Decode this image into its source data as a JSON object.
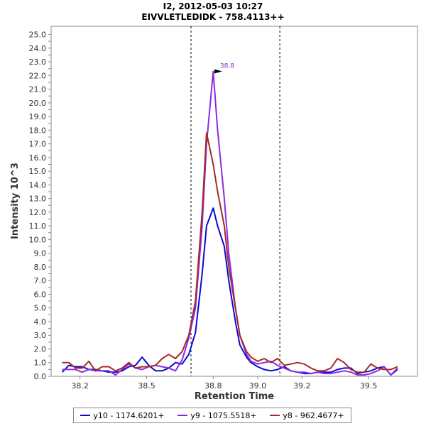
{
  "chart_data": {
    "type": "line",
    "title": "I2, 2012-05-03 10:27",
    "subtitle": "EIVVLETLEDIDK - 758.4113++",
    "xlabel": "Retention Time",
    "ylabel": "Intensity 10^3",
    "xlim": [
      38.07,
      39.72
    ],
    "ylim": [
      0,
      25.6
    ],
    "x_ticks": [
      38.2,
      38.5,
      38.8,
      39.0,
      39.2,
      39.5
    ],
    "x_tick_labels": [
      "38.2",
      "38.5",
      "38.8",
      "39.0",
      "39.2",
      "39.5"
    ],
    "y_ticks": [
      0.0,
      0.5,
      1.0,
      1.5,
      2.0,
      2.5,
      3.0,
      3.5,
      4.0,
      4.5,
      5.0,
      5.5,
      6.0,
      6.5,
      7.0,
      7.5,
      8.0,
      8.5,
      9.0,
      9.5,
      10.0,
      10.5,
      11.0,
      11.5,
      12.0,
      12.5,
      13.0,
      13.5,
      14.0,
      14.5,
      15.0,
      15.5,
      16.0,
      16.5,
      17.0,
      17.5,
      18.0,
      18.5,
      19.0,
      19.5,
      20.0,
      20.5,
      21.0,
      21.5,
      22.0,
      22.5,
      23.0,
      23.5,
      24.0,
      24.5,
      25.0
    ],
    "y_tick_labels": [
      "0.0",
      "0.5",
      "1.0",
      "1.5",
      "2.0",
      "2.5",
      "3.0",
      "3.5",
      "4.0",
      "4.5",
      "5.0",
      "5.5",
      "6.0",
      "6.5",
      "7.0",
      "7.5",
      "8.0",
      "8.5",
      "9.0",
      "9.5",
      "10.0",
      "10.5",
      "11.0",
      "11.5",
      "12.0",
      "12.5",
      "13.0",
      "13.5",
      "14.0",
      "14.5",
      "15.0",
      "15.5",
      "16.0",
      "16.5",
      "17.0",
      "17.5",
      "18.0",
      "18.5",
      "19.0",
      "19.5",
      "20.0",
      "20.5",
      "21.0",
      "21.5",
      "22.0",
      "22.5",
      "23.0",
      "23.5",
      "24.0",
      "24.5",
      "25.0"
    ],
    "vlines": [
      38.7,
      39.1
    ],
    "annotation": {
      "text": "38.8",
      "x": 38.85,
      "y": 22.3,
      "color": "#7a28c8"
    },
    "legend_position": "bottom",
    "series": [
      {
        "name": "y10 - 1174.6201+",
        "color": "#0a0ad4",
        "x": [
          38.12,
          38.15,
          38.18,
          38.21,
          38.24,
          38.27,
          38.3,
          38.33,
          38.36,
          38.39,
          38.42,
          38.45,
          38.48,
          38.51,
          38.54,
          38.57,
          38.6,
          38.63,
          38.66,
          38.69,
          38.72,
          38.75,
          38.77,
          38.8,
          38.82,
          38.85,
          38.87,
          38.9,
          38.92,
          38.95,
          38.97,
          39.0,
          39.03,
          39.06,
          39.09,
          39.12,
          39.15,
          39.18,
          39.21,
          39.24,
          39.27,
          39.3,
          39.33,
          39.36,
          39.39,
          39.42,
          39.45,
          39.48,
          39.51,
          39.54,
          39.57,
          39.6,
          39.63
        ],
        "y": [
          0.3,
          0.8,
          0.7,
          0.7,
          0.5,
          0.5,
          0.4,
          0.3,
          0.3,
          0.4,
          0.7,
          0.8,
          1.4,
          0.8,
          0.4,
          0.4,
          0.6,
          1.0,
          0.9,
          1.6,
          3.2,
          7.5,
          11.0,
          12.3,
          11.0,
          9.5,
          7.0,
          4.0,
          2.3,
          1.4,
          1.0,
          0.7,
          0.5,
          0.4,
          0.5,
          0.7,
          0.4,
          0.3,
          0.2,
          0.2,
          0.3,
          0.3,
          0.3,
          0.5,
          0.6,
          0.6,
          0.2,
          0.3,
          0.4,
          0.6,
          0.7,
          0.1,
          0.5
        ]
      },
      {
        "name": "y9 - 1075.5518+",
        "color": "#8a2be2",
        "x": [
          38.12,
          38.15,
          38.18,
          38.21,
          38.24,
          38.27,
          38.3,
          38.33,
          38.36,
          38.39,
          38.42,
          38.45,
          38.48,
          38.51,
          38.54,
          38.57,
          38.6,
          38.63,
          38.66,
          38.69,
          38.72,
          38.75,
          38.77,
          38.8,
          38.82,
          38.85,
          38.87,
          38.9,
          38.92,
          38.95,
          38.97,
          39.0,
          39.03,
          39.06,
          39.09,
          39.12,
          39.15,
          39.18,
          39.21,
          39.24,
          39.27,
          39.3,
          39.33,
          39.36,
          39.39,
          39.42,
          39.45,
          39.48,
          39.51,
          39.54,
          39.57,
          39.6,
          39.63
        ],
        "y": [
          0.5,
          0.5,
          0.5,
          0.3,
          0.5,
          0.4,
          0.4,
          0.4,
          0.1,
          0.5,
          0.9,
          0.6,
          0.5,
          0.7,
          0.8,
          0.7,
          0.6,
          0.4,
          1.2,
          2.8,
          5.0,
          11.0,
          17.0,
          22.3,
          18.0,
          13.0,
          9.0,
          5.0,
          3.0,
          1.6,
          1.1,
          0.9,
          1.0,
          1.1,
          0.8,
          0.6,
          0.4,
          0.3,
          0.3,
          0.2,
          0.3,
          0.2,
          0.2,
          0.3,
          0.4,
          0.3,
          0.1,
          0.1,
          0.2,
          0.4,
          0.7,
          0.1,
          0.6
        ]
      },
      {
        "name": "y8 - 962.4677+",
        "color": "#a52a2a",
        "x": [
          38.12,
          38.15,
          38.18,
          38.21,
          38.24,
          38.27,
          38.3,
          38.33,
          38.36,
          38.39,
          38.42,
          38.45,
          38.48,
          38.51,
          38.54,
          38.57,
          38.6,
          38.63,
          38.66,
          38.69,
          38.72,
          38.75,
          38.77,
          38.8,
          38.82,
          38.85,
          38.87,
          38.9,
          38.92,
          38.95,
          38.97,
          39.0,
          39.03,
          39.06,
          39.09,
          39.12,
          39.15,
          39.18,
          39.21,
          39.24,
          39.27,
          39.3,
          39.33,
          39.36,
          39.39,
          39.42,
          39.45,
          39.48,
          39.51,
          39.54,
          39.57,
          39.6,
          39.63
        ],
        "y": [
          1.0,
          1.0,
          0.6,
          0.6,
          1.1,
          0.4,
          0.7,
          0.7,
          0.4,
          0.6,
          1.0,
          0.6,
          0.7,
          0.7,
          0.8,
          1.3,
          1.6,
          1.3,
          1.8,
          3.0,
          5.5,
          12.0,
          17.8,
          15.5,
          13.5,
          11.0,
          8.0,
          5.0,
          3.0,
          1.8,
          1.4,
          1.1,
          1.3,
          1.0,
          1.3,
          0.8,
          0.9,
          1.0,
          0.9,
          0.6,
          0.4,
          0.4,
          0.6,
          1.3,
          1.0,
          0.5,
          0.3,
          0.3,
          0.9,
          0.6,
          0.5,
          0.5,
          0.7
        ]
      }
    ]
  }
}
